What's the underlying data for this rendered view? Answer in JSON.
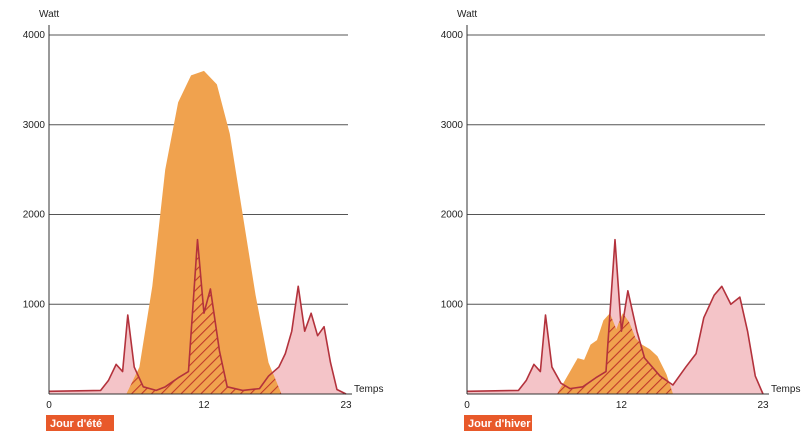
{
  "colors": {
    "production": "#f0a24e",
    "consumption_fill": "#f4c4c8",
    "consumption_line": "#b3323c",
    "self_consumption_hatch": "#c0392b",
    "grid": "#555555",
    "badge": "#e8592a"
  },
  "chart_data": [
    {
      "type": "area",
      "label": "Jour d'été",
      "ylabel": "Watt",
      "xlabel": "Temps",
      "xlim": [
        0,
        23
      ],
      "ylim": [
        0,
        4000
      ],
      "x_ticks": [
        "0",
        "12",
        "23"
      ],
      "y_ticks": [
        "1000",
        "2000",
        "3000",
        "4000"
      ],
      "grid": true,
      "series": [
        {
          "key": "production",
          "points": [
            [
              6,
              0
            ],
            [
              7,
              300
            ],
            [
              8,
              1200
            ],
            [
              9,
              2500
            ],
            [
              10,
              3250
            ],
            [
              11,
              3550
            ],
            [
              12,
              3600
            ],
            [
              13,
              3450
            ],
            [
              14,
              2900
            ],
            [
              15,
              2000
            ],
            [
              16,
              1100
            ],
            [
              17,
              350
            ],
            [
              18,
              0
            ]
          ]
        },
        {
          "key": "consumption",
          "points": [
            [
              0,
              30
            ],
            [
              4,
              40
            ],
            [
              4.6,
              150
            ],
            [
              5.2,
              330
            ],
            [
              5.7,
              250
            ],
            [
              6.1,
              880
            ],
            [
              6.6,
              300
            ],
            [
              7.3,
              80
            ],
            [
              8.3,
              40
            ],
            [
              9,
              80
            ],
            [
              10,
              180
            ],
            [
              10.8,
              250
            ],
            [
              11.5,
              1720
            ],
            [
              12,
              900
            ],
            [
              12.5,
              1170
            ],
            [
              13.2,
              480
            ],
            [
              13.8,
              80
            ],
            [
              15,
              40
            ],
            [
              16.3,
              60
            ],
            [
              17,
              200
            ],
            [
              17.8,
              300
            ],
            [
              18.3,
              450
            ],
            [
              18.8,
              700
            ],
            [
              19.3,
              1200
            ],
            [
              19.8,
              700
            ],
            [
              20.3,
              900
            ],
            [
              20.8,
              650
            ],
            [
              21.3,
              750
            ],
            [
              21.8,
              350
            ],
            [
              22.3,
              50
            ],
            [
              23,
              0
            ]
          ]
        }
      ]
    },
    {
      "type": "area",
      "label": "Jour d'hiver",
      "ylabel": "Watt",
      "xlabel": "Temps",
      "xlim": [
        0,
        23
      ],
      "ylim": [
        0,
        4000
      ],
      "x_ticks": [
        "0",
        "12",
        "23"
      ],
      "y_ticks": [
        "1000",
        "2000",
        "3000",
        "4000"
      ],
      "grid": true,
      "series": [
        {
          "key": "production",
          "points": [
            [
              7,
              0
            ],
            [
              8,
              250
            ],
            [
              8.6,
              400
            ],
            [
              9.1,
              380
            ],
            [
              9.6,
              550
            ],
            [
              10.1,
              600
            ],
            [
              10.6,
              820
            ],
            [
              11.1,
              900
            ],
            [
              11.6,
              720
            ],
            [
              12.1,
              900
            ],
            [
              12.6,
              800
            ],
            [
              13.1,
              620
            ],
            [
              13.6,
              550
            ],
            [
              14.2,
              500
            ],
            [
              14.8,
              420
            ],
            [
              15.5,
              220
            ],
            [
              16,
              0
            ]
          ]
        },
        {
          "key": "consumption",
          "points": [
            [
              0,
              30
            ],
            [
              4,
              40
            ],
            [
              4.6,
              150
            ],
            [
              5.2,
              330
            ],
            [
              5.7,
              250
            ],
            [
              6.1,
              880
            ],
            [
              6.6,
              300
            ],
            [
              7.3,
              120
            ],
            [
              8,
              60
            ],
            [
              9,
              80
            ],
            [
              10,
              180
            ],
            [
              10.8,
              250
            ],
            [
              11.5,
              1720
            ],
            [
              12,
              700
            ],
            [
              12.5,
              1150
            ],
            [
              13.2,
              700
            ],
            [
              13.8,
              400
            ],
            [
              15,
              200
            ],
            [
              16,
              100
            ],
            [
              17,
              300
            ],
            [
              17.8,
              450
            ],
            [
              18.4,
              850
            ],
            [
              19.2,
              1100
            ],
            [
              19.8,
              1200
            ],
            [
              20.5,
              1000
            ],
            [
              21.2,
              1080
            ],
            [
              21.8,
              700
            ],
            [
              22.4,
              200
            ],
            [
              23,
              0
            ]
          ]
        }
      ]
    }
  ]
}
